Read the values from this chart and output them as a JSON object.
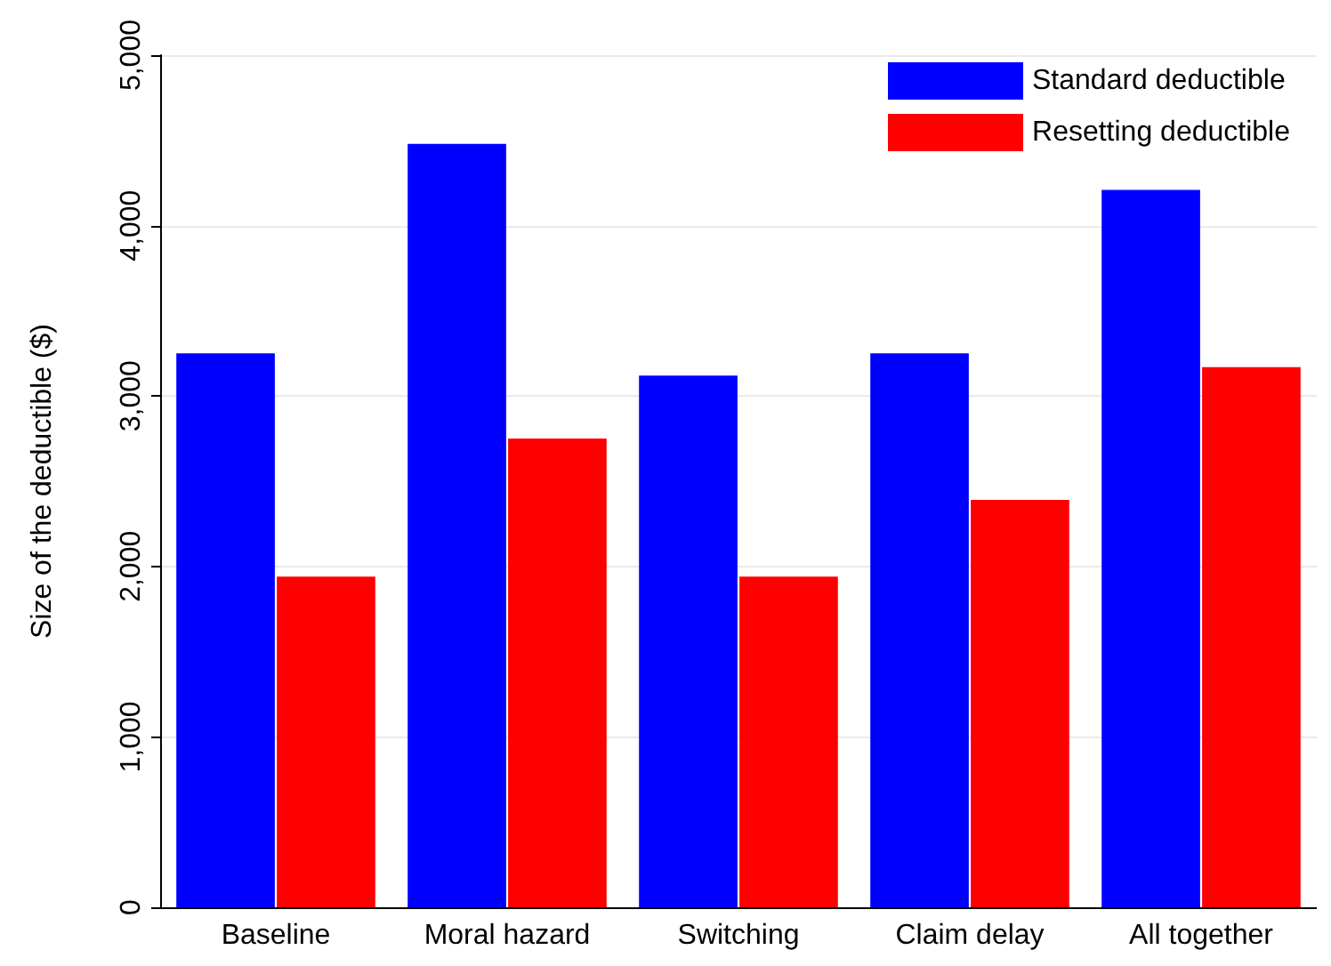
{
  "chart_data": {
    "type": "bar",
    "ylabel": "Size of the deductible ($)",
    "categories": [
      "Baseline",
      "Moral hazard",
      "Switching",
      "Claim delay",
      "All together"
    ],
    "series": [
      {
        "name": "Standard deductible",
        "color": "#0000ff",
        "values": [
          3250,
          4480,
          3120,
          3250,
          4210
        ]
      },
      {
        "name": "Resetting deductible",
        "color": "#ff0000",
        "values": [
          1940,
          2750,
          1940,
          2390,
          3170
        ]
      }
    ],
    "ylim": [
      0,
      5000
    ],
    "yticks": [
      {
        "value": 0,
        "label": "0"
      },
      {
        "value": 1000,
        "label": "1,000"
      },
      {
        "value": 2000,
        "label": "2,000"
      },
      {
        "value": 3000,
        "label": "3,000"
      },
      {
        "value": 4000,
        "label": "4,000"
      },
      {
        "value": 5000,
        "label": "5,000"
      }
    ],
    "grid": "y",
    "legend": "top right"
  }
}
